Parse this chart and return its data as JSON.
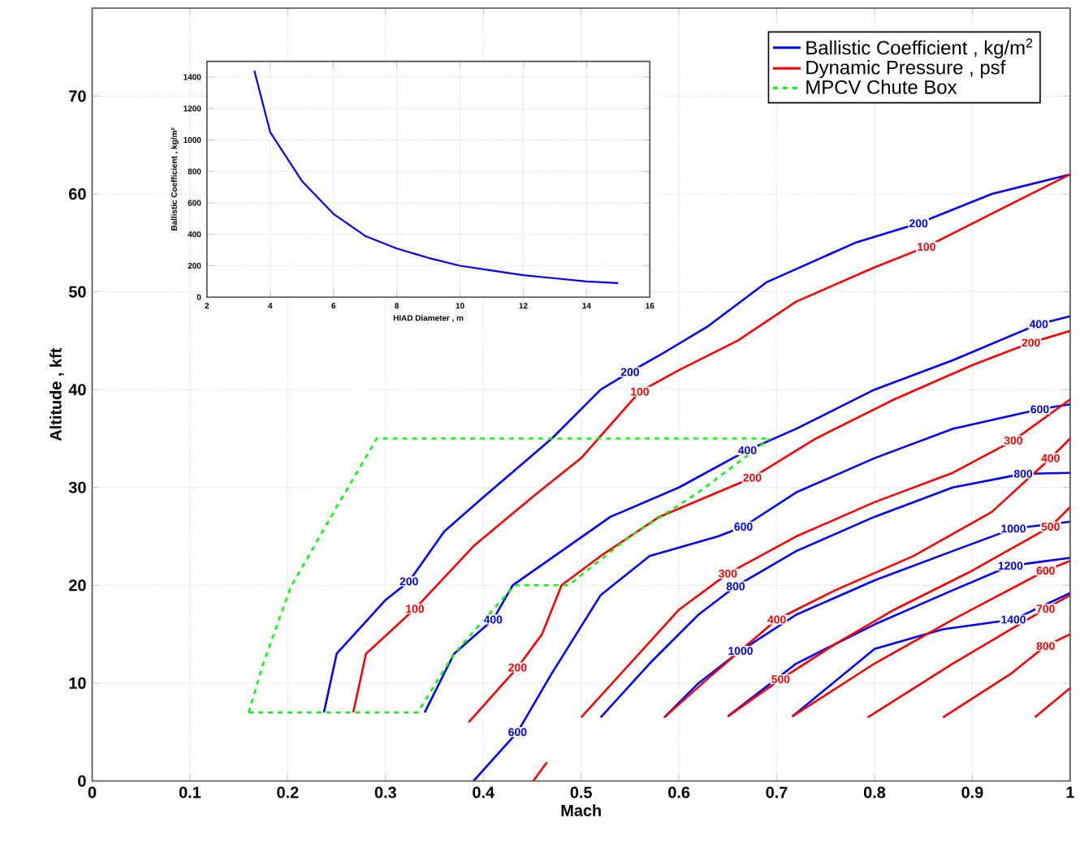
{
  "chart_data": [
    {
      "type": "line",
      "xlabel": "Mach",
      "ylabel": "Altitude , kft",
      "xlim": [
        0,
        1
      ],
      "ylim": [
        0,
        79
      ],
      "xticks": [
        0,
        0.1,
        0.2,
        0.3,
        0.4,
        0.5,
        0.6,
        0.7,
        0.8,
        0.9,
        1
      ],
      "yticks": [
        0,
        10,
        20,
        30,
        40,
        50,
        60,
        70
      ],
      "grid": true,
      "legend": "top right",
      "series": [
        {
          "name": "Ballistic Coefficient , kg/m$^{2}$",
          "color": "#0000ff",
          "x": [
            0.237,
            0.25,
            0.3,
            0.324,
            0.36,
            0.4,
            0.47,
            0.52,
            0.55,
            0.58,
            0.63,
            0.69,
            0.78,
            0.845,
            0.92,
            1.0,
            null,
            0.34,
            0.37,
            0.41,
            0.43,
            0.48,
            0.53,
            0.6,
            0.67,
            0.72,
            0.8,
            0.88,
            0.968,
            1.0,
            null,
            0.39,
            0.435,
            0.47,
            0.52,
            0.57,
            0.64,
            0.666,
            0.72,
            0.8,
            0.88,
            0.969,
            1.0,
            null,
            0.52,
            0.57,
            0.62,
            0.658,
            0.72,
            0.8,
            0.88,
            0.952,
            1.0,
            null,
            0.585,
            0.62,
            0.663,
            0.72,
            0.8,
            0.88,
            0.942,
            1.0,
            null,
            0.65,
            0.72,
            0.8,
            0.88,
            0.939,
            1.0,
            null,
            0.716,
            0.8,
            0.87,
            0.942,
            1.0
          ],
          "values": [
            7,
            13,
            18.5,
            20.4,
            25.5,
            29,
            35,
            40,
            41.8,
            43.5,
            46.5,
            51,
            55,
            57,
            60,
            62,
            null,
            7,
            13,
            16.5,
            20,
            23.5,
            27,
            30,
            33.8,
            36,
            40,
            43,
            46.7,
            47.5,
            null,
            0,
            5,
            11,
            19,
            23,
            25,
            26,
            29.5,
            33,
            36,
            38,
            38.5,
            null,
            6.5,
            12,
            17,
            19.9,
            23.5,
            27,
            30,
            31.4,
            31.5,
            null,
            6.5,
            10,
            13.3,
            17,
            20.5,
            23.5,
            25.8,
            26.5,
            null,
            6.6,
            12,
            16,
            19.5,
            22,
            22.8,
            null,
            6.6,
            13.5,
            15.5,
            16.5,
            19.2
          ]
        },
        {
          "name": "Dynamic Pressure , psf",
          "color": "#ff0000",
          "x": [
            0.267,
            0.28,
            0.33,
            0.39,
            0.45,
            0.5,
            0.56,
            0.6,
            0.66,
            0.72,
            0.8,
            0.853,
            0.94,
            1.0,
            null,
            0.385,
            0.435,
            0.46,
            0.48,
            0.52,
            0.58,
            0.675,
            0.74,
            0.82,
            0.9,
            0.96,
            1.0,
            null,
            0.451,
            0.465,
            null,
            0.5,
            0.55,
            0.6,
            0.65,
            0.72,
            0.8,
            0.88,
            0.942,
            1.0,
            null,
            0.585,
            0.63,
            0.7,
            0.76,
            0.84,
            0.92,
            0.98,
            1.0,
            null,
            0.65,
            0.704,
            0.76,
            0.82,
            0.9,
            0.98,
            1.0,
            null,
            0.716,
            0.8,
            0.88,
            0.975,
            1.0,
            null,
            0.793,
            0.88,
            0.975,
            1.0,
            null,
            0.87,
            0.94,
            0.975,
            1.0,
            null,
            0.964,
            1.0
          ],
          "values": [
            7,
            13,
            17.6,
            24,
            29,
            33,
            39.8,
            42,
            45,
            49,
            52.5,
            54.6,
            59,
            62,
            null,
            6,
            11.6,
            15,
            20,
            23,
            27,
            31,
            35,
            39,
            42.5,
            44.8,
            46,
            null,
            0,
            1.9,
            null,
            6.5,
            12,
            17.5,
            21.2,
            25,
            28.5,
            31.5,
            34.8,
            39,
            null,
            6.5,
            10.5,
            16.5,
            19.5,
            23,
            27.5,
            33,
            35,
            null,
            6.6,
            10.4,
            14,
            17.5,
            21.5,
            26,
            28,
            null,
            6.6,
            12,
            16.5,
            21.5,
            22.5,
            null,
            6.5,
            12,
            17.6,
            19,
            null,
            6.5,
            11,
            13.8,
            15,
            null,
            6.5,
            9.5
          ]
        },
        {
          "name": "MPCV Chute Box",
          "color": "#00ff00",
          "line_style": "dashed",
          "x": [
            0.16,
            0.333,
            0.37,
            0.432,
            0.487,
            0.55,
            0.62,
            0.693,
            null,
            0.16,
            0.175,
            0.203,
            0.25,
            0.291,
            0.693
          ],
          "values": [
            7,
            7,
            13,
            20,
            20,
            25,
            29.5,
            35,
            null,
            7,
            12,
            19.8,
            28,
            35,
            35
          ]
        }
      ],
      "annotations": [
        {
          "text": "200",
          "x": 0.324,
          "y": 20.4
        },
        {
          "text": "200",
          "x": 0.55,
          "y": 41.8
        },
        {
          "text": "200",
          "x": 0.845,
          "y": 57
        },
        {
          "text": "400",
          "x": 0.41,
          "y": 16.5
        },
        {
          "text": "400",
          "x": 0.67,
          "y": 33.8
        },
        {
          "text": "400",
          "x": 0.968,
          "y": 46.7
        },
        {
          "text": "600",
          "x": 0.435,
          "y": 5
        },
        {
          "text": "600",
          "x": 0.666,
          "y": 26
        },
        {
          "text": "600",
          "x": 0.969,
          "y": 38
        },
        {
          "text": "800",
          "x": 0.658,
          "y": 19.9
        },
        {
          "text": "800",
          "x": 0.952,
          "y": 31.4
        },
        {
          "text": "1000",
          "x": 0.663,
          "y": 13.3
        },
        {
          "text": "1000",
          "x": 0.942,
          "y": 25.8
        },
        {
          "text": "1200",
          "x": 0.939,
          "y": 22
        },
        {
          "text": "1400",
          "x": 0.942,
          "y": 16.5
        },
        {
          "text": "100",
          "x": 0.33,
          "y": 17.6
        },
        {
          "text": "100",
          "x": 0.56,
          "y": 39.8
        },
        {
          "text": "100",
          "x": 0.853,
          "y": 54.6
        },
        {
          "text": "200",
          "x": 0.435,
          "y": 11.6
        },
        {
          "text": "200",
          "x": 0.675,
          "y": 31
        },
        {
          "text": "200",
          "x": 0.96,
          "y": 44.8
        },
        {
          "text": "300",
          "x": 0.65,
          "y": 21.2
        },
        {
          "text": "300",
          "x": 0.942,
          "y": 34.8
        },
        {
          "text": "400",
          "x": 0.7,
          "y": 16.5
        },
        {
          "text": "400",
          "x": 0.98,
          "y": 33
        },
        {
          "text": "500",
          "x": 0.704,
          "y": 10.4
        },
        {
          "text": "500",
          "x": 0.98,
          "y": 26
        },
        {
          "text": "600",
          "x": 0.975,
          "y": 21.5
        },
        {
          "text": "700",
          "x": 0.975,
          "y": 17.6
        },
        {
          "text": "800",
          "x": 0.975,
          "y": 13.8
        }
      ]
    },
    {
      "type": "line",
      "xlabel": "HIAD Diameter , m",
      "ylabel": "Ballistic Coefficient , kg/m²",
      "xlim": [
        2,
        16
      ],
      "ylim": [
        0,
        1500
      ],
      "xticks": [
        2,
        4,
        6,
        8,
        10,
        12,
        14,
        16
      ],
      "yticks": [
        0,
        200,
        400,
        600,
        800,
        1000,
        1200,
        1400
      ],
      "grid": true,
      "color": "#0000ff",
      "x": [
        3.5,
        4,
        5,
        6,
        7,
        8,
        9,
        10,
        11,
        12,
        13,
        14,
        15
      ],
      "values": [
        1440,
        1050,
        740,
        530,
        390,
        310,
        250,
        200,
        170,
        140,
        120,
        100,
        90
      ]
    }
  ]
}
